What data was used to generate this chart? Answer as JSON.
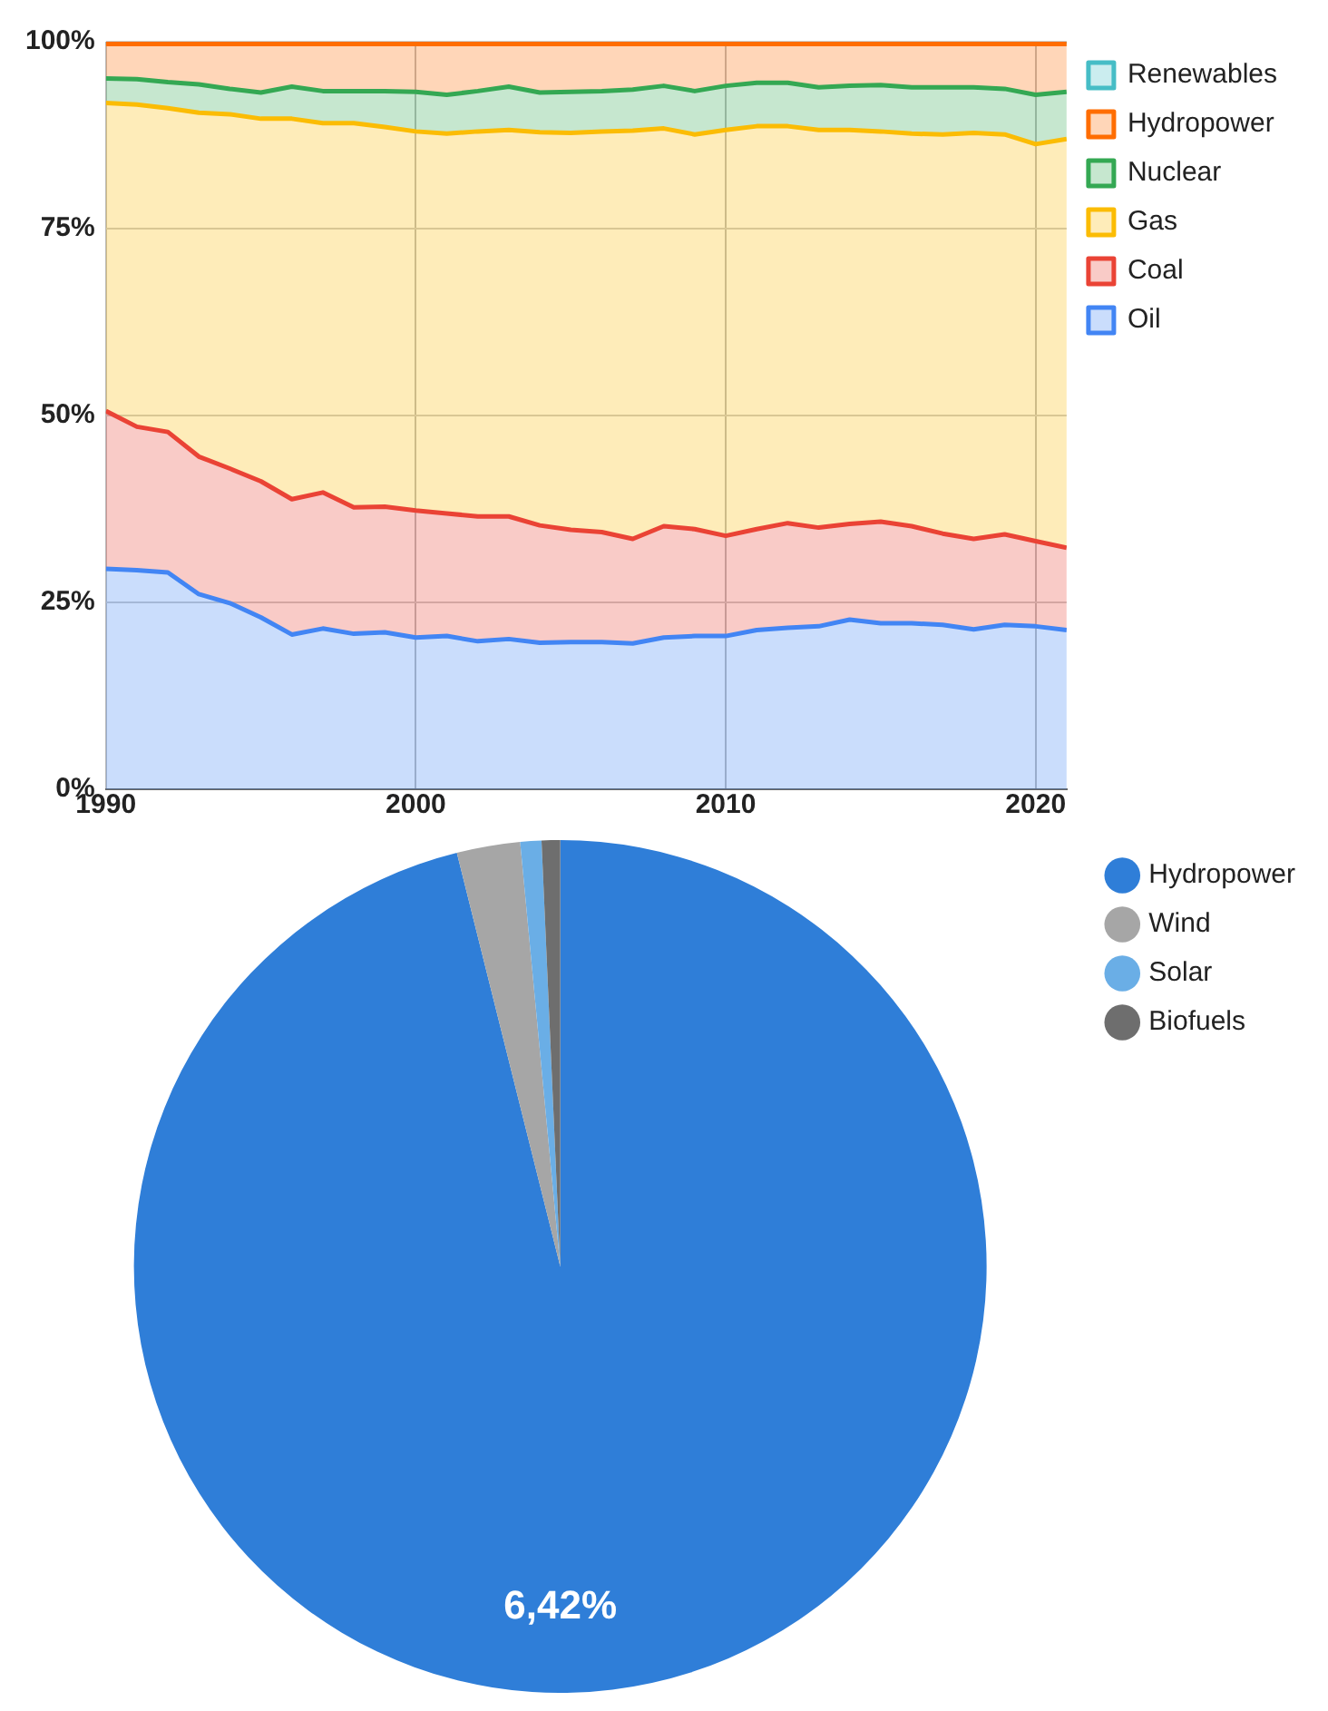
{
  "chart_data": [
    {
      "type": "area",
      "stacked": true,
      "x": [
        1990,
        1991,
        1992,
        1993,
        1994,
        1995,
        1996,
        1997,
        1998,
        1999,
        2000,
        2001,
        2002,
        2003,
        2004,
        2005,
        2006,
        2007,
        2008,
        2009,
        2010,
        2011,
        2012,
        2013,
        2014,
        2015,
        2016,
        2017,
        2018,
        2019,
        2020,
        2021
      ],
      "series": [
        {
          "name": "Oil",
          "color": "#4285f4",
          "values": [
            29.5,
            29.3,
            29.0,
            26.1,
            24.9,
            23.0,
            20.7,
            21.5,
            20.8,
            21.0,
            20.3,
            20.5,
            19.8,
            20.1,
            19.6,
            19.7,
            19.7,
            19.5,
            20.3,
            20.5,
            20.5,
            21.3,
            21.6,
            21.8,
            22.7,
            22.2,
            22.2,
            22.0,
            21.4,
            22.0,
            21.8,
            21.3
          ]
        },
        {
          "name": "Coal",
          "color": "#ea4335",
          "values": [
            21.1,
            19.2,
            18.8,
            18.4,
            18.0,
            18.2,
            18.1,
            18.2,
            16.9,
            16.8,
            17.0,
            16.4,
            16.7,
            16.4,
            15.7,
            15.0,
            14.7,
            14.0,
            14.9,
            14.3,
            13.4,
            13.5,
            14.0,
            13.2,
            12.8,
            13.6,
            13.0,
            12.2,
            12.1,
            12.1,
            11.4,
            11.0
          ]
        },
        {
          "name": "Gas",
          "color": "#fbbc04",
          "values": [
            41.2,
            43.1,
            43.3,
            46.0,
            47.4,
            48.5,
            50.9,
            49.4,
            51.4,
            50.8,
            50.7,
            50.8,
            51.5,
            51.7,
            52.6,
            53.1,
            53.6,
            54.6,
            53.2,
            52.8,
            54.3,
            53.9,
            53.1,
            53.2,
            52.7,
            52.2,
            52.5,
            53.4,
            54.3,
            53.5,
            53.1,
            54.7
          ]
        },
        {
          "name": "Nuclear",
          "color": "#34a853",
          "values": [
            3.3,
            3.4,
            3.5,
            3.8,
            3.4,
            3.5,
            4.3,
            4.3,
            4.3,
            4.8,
            5.3,
            5.2,
            5.4,
            5.8,
            5.3,
            5.5,
            5.4,
            5.5,
            5.7,
            5.8,
            5.9,
            5.8,
            5.8,
            5.7,
            5.9,
            6.2,
            6.2,
            6.3,
            6.1,
            6.1,
            6.6,
            6.3
          ]
        },
        {
          "name": "Hydropower",
          "color": "#ff6d01",
          "values": [
            4.6,
            4.7,
            5.1,
            5.4,
            6.0,
            6.5,
            5.7,
            6.3,
            6.3,
            6.3,
            6.4,
            6.8,
            6.3,
            5.7,
            6.5,
            6.4,
            6.3,
            6.1,
            5.6,
            6.3,
            5.6,
            5.2,
            5.2,
            5.8,
            5.6,
            5.5,
            5.8,
            5.8,
            5.8,
            6.0,
            6.8,
            6.4
          ]
        },
        {
          "name": "Renewables",
          "color": "#46bdc6",
          "values": [
            0.3,
            0.3,
            0.3,
            0.3,
            0.3,
            0.3,
            0.3,
            0.3,
            0.3,
            0.3,
            0.3,
            0.3,
            0.3,
            0.3,
            0.3,
            0.3,
            0.3,
            0.3,
            0.3,
            0.3,
            0.3,
            0.3,
            0.3,
            0.3,
            0.3,
            0.3,
            0.3,
            0.3,
            0.3,
            0.3,
            0.3,
            0.3
          ]
        }
      ],
      "xlim": [
        1990,
        2021
      ],
      "xticks": [
        1990,
        2000,
        2010,
        2020
      ],
      "ylim": [
        0,
        100
      ],
      "yticks": [
        {
          "value": 0,
          "label": "0%"
        },
        {
          "value": 25,
          "label": "25%"
        },
        {
          "value": 50,
          "label": "50%"
        },
        {
          "value": 75,
          "label": "75%"
        },
        {
          "value": 100,
          "label": "100%"
        }
      ],
      "grid": true,
      "legend": "top right"
    },
    {
      "type": "pie",
      "categories": [
        "Hydropower",
        "Wind",
        "Solar",
        "Biofuels"
      ],
      "values": [
        96.1,
        2.4,
        0.8,
        0.7
      ],
      "colors": [
        "#2f7ed8",
        "#a6a6a6",
        "#6aaee6",
        "#6e6e6e"
      ],
      "annotations": [
        "6,42%"
      ],
      "legend": "top right"
    }
  ]
}
